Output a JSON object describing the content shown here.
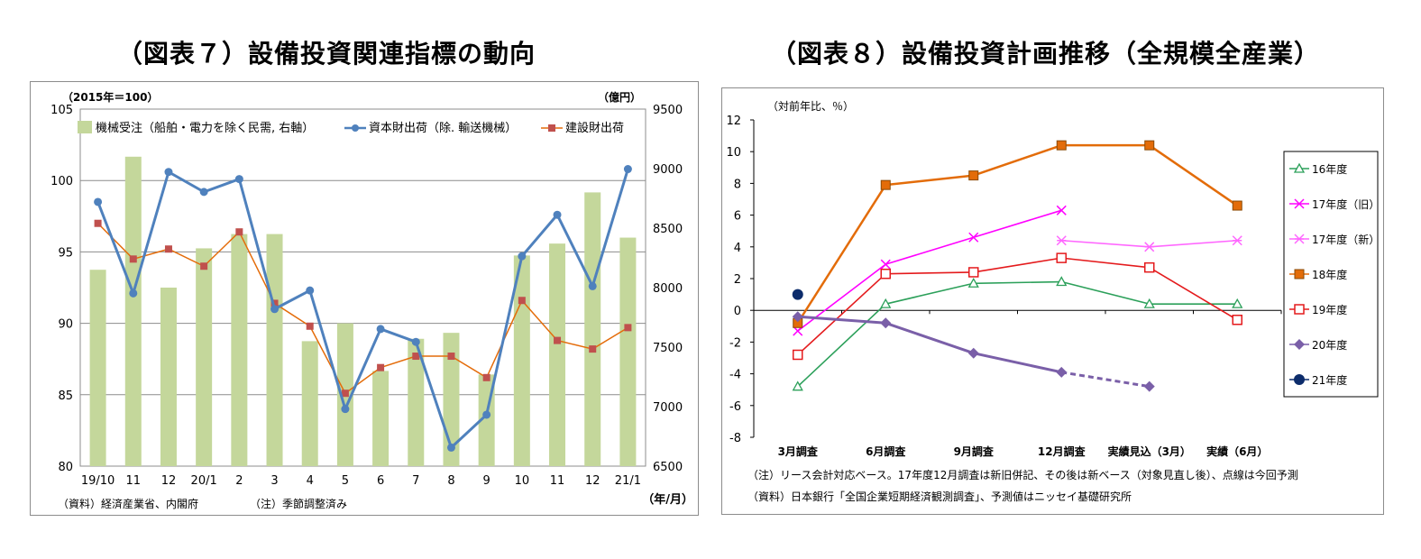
{
  "chart_data": [
    {
      "type": "bar+line",
      "title": "（図表７）設備投資関連指標の動向",
      "left_axis_unit": "（2015年＝100）",
      "right_axis_unit": "（億円）",
      "x_unit": "（年/月）",
      "source_note": "（資料）経済産業省、内閣府",
      "adjust_note": "（注）季節調整済み",
      "categories": [
        "19/10",
        "11",
        "12",
        "20/1",
        "2",
        "3",
        "4",
        "5",
        "6",
        "7",
        "8",
        "9",
        "10",
        "11",
        "12",
        "21/1"
      ],
      "ylim_left": [
        80,
        105
      ],
      "yticks_left": [
        80,
        85,
        90,
        95,
        100,
        105
      ],
      "ylim_right": [
        6500,
        9500
      ],
      "yticks_right": [
        6500,
        7000,
        7500,
        8000,
        8500,
        9000,
        9500
      ],
      "series": [
        {
          "name": "機械受注（船舶・電力を除く民需, 右軸）",
          "kind": "bar",
          "axis": "right",
          "color": "#c4d79b",
          "values": [
            8150,
            9100,
            8000,
            8330,
            8450,
            8450,
            7550,
            7700,
            7300,
            7570,
            7620,
            7270,
            8270,
            8370,
            8800,
            8420
          ]
        },
        {
          "name": "資本財出荷（除. 輸送機械）",
          "kind": "line",
          "axis": "left",
          "color": "#4f81bd",
          "values": [
            98.5,
            92.1,
            100.6,
            99.2,
            100.1,
            91.0,
            92.3,
            84.0,
            89.6,
            88.7,
            81.3,
            83.6,
            94.7,
            97.6,
            92.6,
            100.8
          ]
        },
        {
          "name": "建設財出荷",
          "kind": "line",
          "axis": "left",
          "color": "#c0504d",
          "values": [
            97.0,
            94.5,
            95.2,
            94.0,
            96.4,
            91.4,
            89.8,
            85.1,
            86.9,
            87.7,
            87.7,
            86.2,
            91.6,
            88.8,
            88.2,
            89.7
          ]
        }
      ]
    },
    {
      "type": "line",
      "title": "（図表８）設備投資計画推移（全規模全産業）",
      "y_unit": "（対前年比、％）",
      "categories": [
        "3月調査",
        "6月調査",
        "9月調査",
        "12月調査",
        "実績見込（3月）",
        "実績（6月）"
      ],
      "ylim": [
        -8,
        12
      ],
      "yticks": [
        -8,
        -6,
        -4,
        -2,
        0,
        2,
        4,
        6,
        8,
        10,
        12
      ],
      "note1": "（注）リース会計対応ベース。17年度12月調査は新旧併記、その後は新ベース（対象見直し後）、点線は今回予測",
      "note2": "（資料）日本銀行「全国企業短期経済観測調査」、予測値はニッセイ基礎研究所",
      "series": [
        {
          "name": "16年度",
          "color": "#2ca05a",
          "marker": "triangle-open",
          "values": [
            -4.8,
            0.4,
            1.7,
            1.8,
            0.4,
            0.4
          ]
        },
        {
          "name": "17年度（旧）",
          "color": "#ff00ff",
          "marker": "x",
          "values": [
            -1.3,
            2.9,
            4.6,
            6.3,
            null,
            null
          ]
        },
        {
          "name": "17年度（新）",
          "color": "#ff66ff",
          "marker": "asterisk",
          "values": [
            null,
            null,
            null,
            4.4,
            4.0,
            4.4
          ]
        },
        {
          "name": "18年度",
          "color": "#e36c09",
          "marker": "square-filled",
          "values": [
            -0.8,
            7.9,
            8.5,
            10.4,
            10.4,
            6.6
          ]
        },
        {
          "name": "19年度",
          "color": "#e41a1c",
          "marker": "square-open",
          "values": [
            -2.8,
            2.3,
            2.4,
            3.3,
            2.7,
            -0.6
          ]
        },
        {
          "name": "20年度",
          "color": "#7a5fa8",
          "marker": "diamond",
          "values": [
            -0.4,
            -0.8,
            -2.7,
            -3.9,
            -4.8,
            null
          ],
          "dashed_from_index": 3
        },
        {
          "name": "21年度",
          "color": "#0c2c6b",
          "marker": "circle",
          "values": [
            1.0,
            null,
            null,
            null,
            null,
            null
          ]
        }
      ]
    }
  ]
}
